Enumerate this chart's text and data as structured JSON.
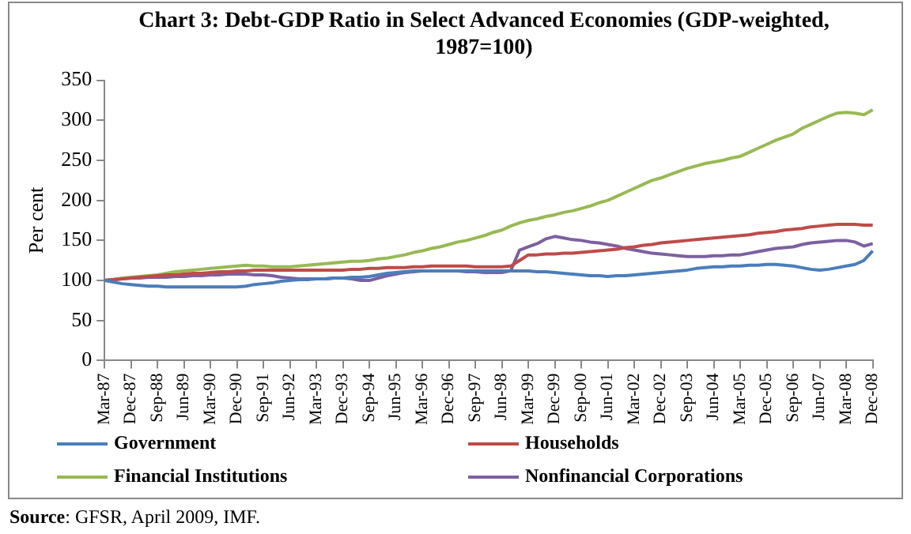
{
  "chart_data": {
    "type": "line",
    "title": "Chart 3: Debt-GDP Ratio in Select Advanced Economies (GDP-weighted, 1987=100)",
    "ylabel": "Per cent",
    "categories": [
      "Mar-87",
      null,
      null,
      "Dec-87",
      null,
      null,
      "Sep-88",
      null,
      null,
      "Jun-89",
      null,
      null,
      "Mar-90",
      null,
      null,
      "Dec-90",
      null,
      null,
      "Sep-91",
      null,
      null,
      "Jun-92",
      null,
      null,
      "Mar-93",
      null,
      null,
      "Dec-93",
      null,
      null,
      "Sep-94",
      null,
      null,
      "Jun-95",
      null,
      null,
      "Mar-96",
      null,
      null,
      "Dec-96",
      null,
      null,
      "Sep-97",
      null,
      null,
      "Jun-98",
      null,
      null,
      "Mar-99",
      null,
      null,
      "Dec-99",
      null,
      null,
      "Sep-00",
      null,
      null,
      "Jun-01",
      null,
      null,
      "Mar-02",
      null,
      null,
      "Dec-02",
      null,
      null,
      "Sep-03",
      null,
      null,
      "Jun-04",
      null,
      null,
      "Mar-05",
      null,
      null,
      "Dec-05",
      null,
      null,
      "Sep-06",
      null,
      null,
      "Jun-07",
      null,
      null,
      "Mar-08",
      null,
      null,
      "Dec-08"
    ],
    "series": [
      {
        "name": "Government",
        "color": "#4a7ebb",
        "values": [
          100,
          98,
          96,
          95,
          94,
          93,
          93,
          92,
          92,
          92,
          92,
          92,
          92,
          92,
          92,
          92,
          93,
          95,
          96,
          97,
          99,
          100,
          101,
          101,
          102,
          102,
          103,
          103,
          104,
          104,
          105,
          107,
          109,
          110,
          111,
          112,
          112,
          112,
          112,
          112,
          112,
          112,
          112,
          112,
          112,
          112,
          112,
          112,
          112,
          111,
          111,
          110,
          109,
          108,
          107,
          106,
          106,
          105,
          106,
          106,
          107,
          108,
          109,
          110,
          111,
          112,
          113,
          115,
          116,
          117,
          117,
          118,
          118,
          119,
          119,
          120,
          120,
          119,
          118,
          116,
          114,
          113,
          114,
          116,
          118,
          120,
          125,
          137
        ]
      },
      {
        "name": "Households",
        "color": "#be4b48",
        "values": [
          100,
          101,
          102,
          103,
          104,
          105,
          106,
          107,
          107,
          108,
          109,
          109,
          110,
          111,
          111,
          112,
          112,
          113,
          113,
          113,
          113,
          113,
          113,
          113,
          113,
          113,
          113,
          113,
          114,
          114,
          115,
          115,
          116,
          116,
          116,
          117,
          117,
          118,
          118,
          118,
          118,
          118,
          117,
          117,
          117,
          117,
          118,
          125,
          132,
          132,
          133,
          133,
          134,
          134,
          135,
          136,
          137,
          138,
          139,
          141,
          142,
          144,
          145,
          147,
          148,
          149,
          150,
          151,
          152,
          153,
          154,
          155,
          156,
          157,
          159,
          160,
          161,
          163,
          164,
          165,
          167,
          168,
          169,
          170,
          170,
          170,
          169,
          169
        ]
      },
      {
        "name": "Financial Institutions",
        "color": "#98b954",
        "values": [
          100,
          101,
          103,
          104,
          105,
          106,
          107,
          109,
          111,
          112,
          113,
          114,
          115,
          116,
          117,
          118,
          119,
          118,
          118,
          117,
          117,
          117,
          118,
          119,
          120,
          121,
          122,
          123,
          124,
          124,
          125,
          127,
          128,
          130,
          132,
          135,
          137,
          140,
          142,
          145,
          148,
          150,
          153,
          156,
          160,
          163,
          168,
          172,
          175,
          177,
          180,
          182,
          185,
          187,
          190,
          193,
          197,
          200,
          205,
          210,
          215,
          220,
          225,
          228,
          232,
          236,
          240,
          243,
          246,
          248,
          250,
          253,
          255,
          260,
          265,
          270,
          275,
          279,
          283,
          290,
          295,
          300,
          305,
          309,
          310,
          309,
          307,
          313
        ]
      },
      {
        "name": "Nonfinancial Corporations",
        "color": "#7d60a0",
        "values": [
          100,
          101,
          102,
          103,
          103,
          104,
          104,
          104,
          105,
          105,
          106,
          106,
          107,
          107,
          108,
          108,
          108,
          107,
          107,
          106,
          104,
          103,
          102,
          102,
          102,
          102,
          103,
          103,
          102,
          100,
          100,
          103,
          106,
          108,
          110,
          111,
          112,
          112,
          112,
          112,
          112,
          111,
          111,
          110,
          110,
          110,
          112,
          138,
          142,
          146,
          152,
          155,
          153,
          151,
          150,
          148,
          147,
          145,
          143,
          140,
          138,
          136,
          134,
          133,
          132,
          131,
          130,
          130,
          130,
          131,
          131,
          132,
          132,
          134,
          136,
          138,
          140,
          141,
          142,
          145,
          147,
          148,
          149,
          150,
          150,
          148,
          143,
          146
        ]
      }
    ],
    "ylim": [
      0,
      350
    ],
    "yticks": [
      0,
      50,
      100,
      150,
      200,
      250,
      300,
      350
    ],
    "grid": false,
    "legend": "bottom",
    "marker": "none",
    "line_style": "solid",
    "annotations": [
      "Source: GFSR, April 2009, IMF."
    ]
  }
}
